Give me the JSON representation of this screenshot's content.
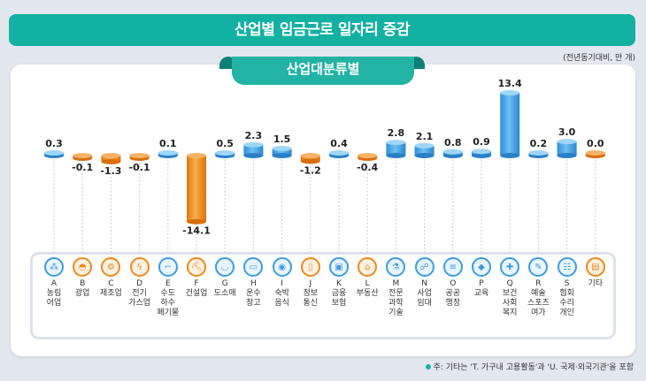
{
  "title": "산업별 임금근로 일자리 증감",
  "unit": "(전년동기대비, 만 개)",
  "subtitle": "산업대분류별",
  "note": "주: 기타는 'T. 가구내 고용활동'과 'U. 국제·외국기관'을 포함",
  "colors": {
    "positive": "#3a9de0",
    "negative": "#f0881a",
    "accent": "#12b1a1"
  },
  "chart_data": {
    "type": "bar",
    "title": "산업별 임금근로 일자리 증감",
    "subtitle": "산업대분류별",
    "unit": "(전년동기대비, 만 개)",
    "categories": [
      {
        "code": "A",
        "name": "농림\n어업",
        "icon": "wheat-icon"
      },
      {
        "code": "B",
        "name": "광업",
        "icon": "helmet-icon"
      },
      {
        "code": "C",
        "name": "제조업",
        "icon": "gear-icon"
      },
      {
        "code": "D",
        "name": "전기\n가스업",
        "icon": "lightning-icon"
      },
      {
        "code": "E",
        "name": "수도\n하수\n폐기물",
        "icon": "faucet-icon"
      },
      {
        "code": "F",
        "name": "건설업",
        "icon": "excavator-icon"
      },
      {
        "code": "G",
        "name": "도소매",
        "icon": "basket-icon"
      },
      {
        "code": "H",
        "name": "운수\n창고",
        "icon": "truck-icon"
      },
      {
        "code": "I",
        "name": "숙박\n음식",
        "icon": "dish-icon"
      },
      {
        "code": "J",
        "name": "정보\n통신",
        "icon": "phone-icon"
      },
      {
        "code": "K",
        "name": "금융\n보험",
        "icon": "laptop-icon"
      },
      {
        "code": "L",
        "name": "부동산",
        "icon": "house-icon"
      },
      {
        "code": "M",
        "name": "전문\n과학\n기술",
        "icon": "flask-icon"
      },
      {
        "code": "N",
        "name": "사업\n임대",
        "icon": "people-icon"
      },
      {
        "code": "O",
        "name": "공공\n행정",
        "icon": "scroll-icon"
      },
      {
        "code": "P",
        "name": "교육",
        "icon": "graduation-cap-icon"
      },
      {
        "code": "Q",
        "name": "보건\n사회\n복지",
        "icon": "medical-kit-icon"
      },
      {
        "code": "R",
        "name": "예술\n스포츠\n여가",
        "icon": "palette-icon"
      },
      {
        "code": "S",
        "name": "협회\n수리\n개인",
        "icon": "group-icon"
      },
      {
        "code": "",
        "name": "기타",
        "icon": "document-icon"
      }
    ],
    "values": [
      0.3,
      -0.1,
      -1.3,
      -0.1,
      0.1,
      -14.1,
      0.5,
      2.3,
      1.5,
      -1.2,
      0.4,
      -0.4,
      2.8,
      2.1,
      0.8,
      0.9,
      13.4,
      0.2,
      3.0,
      0.0
    ],
    "labels": [
      "0.3",
      "-0.1",
      "-1.3",
      "-0.1",
      "0.1",
      "-14.1",
      "0.5",
      "2.3",
      "1.5",
      "-1.2",
      "0.4",
      "-0.4",
      "2.8",
      "2.1",
      "0.8",
      "0.9",
      "13.4",
      "0.2",
      "3.0",
      "0.0"
    ]
  }
}
